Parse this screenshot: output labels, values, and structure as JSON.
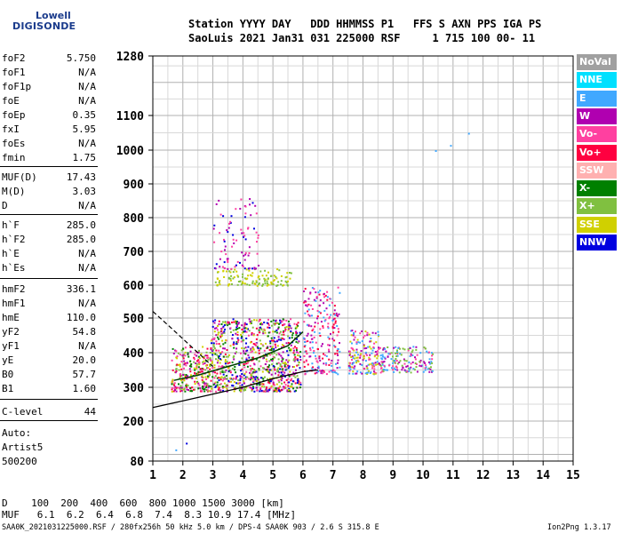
{
  "logo": {
    "line1": "Lowell",
    "line2": "DIGISONDE"
  },
  "header": {
    "line1": "Station YYYY DAY   DDD HHMMSS P1   FFS S AXN PPS IGA PS",
    "line2": "SaoLuis 2021 Jan31 031 225000 RSF     1 715 100 00- 11"
  },
  "params": [
    {
      "name": "foF2",
      "value": "5.750"
    },
    {
      "name": "foF1",
      "value": "N/A"
    },
    {
      "name": "foF1p",
      "value": "N/A"
    },
    {
      "name": "foE",
      "value": "N/A"
    },
    {
      "name": "foEp",
      "value": "0.35"
    },
    {
      "name": "fxI",
      "value": "5.95"
    },
    {
      "name": "foEs",
      "value": "N/A"
    },
    {
      "name": "fmin",
      "value": "1.75"
    },
    {
      "name": "MUF(D)",
      "value": "17.43"
    },
    {
      "name": "M(D)",
      "value": "3.03"
    },
    {
      "name": "D",
      "value": "N/A"
    },
    {
      "name": "h`F",
      "value": "285.0"
    },
    {
      "name": "h`F2",
      "value": "285.0"
    },
    {
      "name": "h`E",
      "value": "N/A"
    },
    {
      "name": "h`Es",
      "value": "N/A"
    },
    {
      "name": "hmF2",
      "value": "336.1"
    },
    {
      "name": "hmF1",
      "value": "N/A"
    },
    {
      "name": "hmE",
      "value": "110.0"
    },
    {
      "name": "yF2",
      "value": "54.8"
    },
    {
      "name": "yF1",
      "value": "N/A"
    },
    {
      "name": "yE",
      "value": "20.0"
    },
    {
      "name": "B0",
      "value": "57.7"
    },
    {
      "name": "B1",
      "value": "1.60"
    },
    {
      "name": "C-level",
      "value": "44"
    }
  ],
  "autoscaling": {
    "line1": "Auto:",
    "line2": "Artist5",
    "line3": "500200"
  },
  "legend": [
    {
      "label": "NoVal",
      "color": "#a0a0a0"
    },
    {
      "label": "NNE",
      "color": "#00e0ff"
    },
    {
      "label": "E",
      "color": "#40a8ff"
    },
    {
      "label": "W",
      "color": "#b000b0"
    },
    {
      "label": "Vo-",
      "color": "#ff40a0"
    },
    {
      "label": "Vo+",
      "color": "#ff0040"
    },
    {
      "label": "SSW",
      "color": "#ffb0b0"
    },
    {
      "label": "X-",
      "color": "#008000"
    },
    {
      "label": "X+",
      "color": "#80c040"
    },
    {
      "label": "SSE",
      "color": "#d0d000"
    },
    {
      "label": "NNW",
      "color": "#0000e0"
    }
  ],
  "footer": {
    "d_line": "D    100  200  400  600  800 1000 1500 3000 [km]",
    "muf_line": "MUF   6.1  6.2  6.4  6.8  7.4  8.3 10.9 17.4 [MHz]",
    "file_line": "SAA0K_2021031225000.RSF / 280fx256h 50 kHz 5.0 km / DPS-4 SAA0K 903 / 2.6 S 315.8 E",
    "version": "Ion2Png 1.3.17"
  },
  "chart_data": {
    "type": "scatter",
    "title": "",
    "xlabel": "",
    "ylabel": "",
    "xlim": [
      1,
      15
    ],
    "ylim": [
      80,
      1280
    ],
    "x_ticks": [
      1,
      2,
      3,
      4,
      5,
      6,
      7,
      8,
      9,
      10,
      11,
      12,
      13,
      14,
      15
    ],
    "y_ticks": [
      80,
      200,
      300,
      400,
      500,
      600,
      700,
      800,
      900,
      1000,
      1100,
      1280
    ],
    "grid": true,
    "point_clusters": [
      {
        "x_range": [
          1.6,
          2.9
        ],
        "y_range": [
          290,
          420
        ],
        "colors": [
          "#b000b0",
          "#ff40a0",
          "#d0d000",
          "#008000",
          "#80c040",
          "#ff0040"
        ],
        "count": 260
      },
      {
        "x_range": [
          2.9,
          5.9
        ],
        "y_range": [
          290,
          500
        ],
        "colors": [
          "#b000b0",
          "#ff40a0",
          "#d0d000",
          "#008000",
          "#ff0040",
          "#0000e0",
          "#80c040"
        ],
        "count": 900
      },
      {
        "x_range": [
          3.0,
          5.6
        ],
        "y_range": [
          600,
          650
        ],
        "colors": [
          "#d0d000",
          "#80c040"
        ],
        "count": 120
      },
      {
        "x_range": [
          3.0,
          4.5
        ],
        "y_range": [
          650,
          860
        ],
        "colors": [
          "#b000b0",
          "#0000e0",
          "#ff40a0"
        ],
        "count": 90
      },
      {
        "x_range": [
          6.0,
          7.2
        ],
        "y_range": [
          340,
          600
        ],
        "colors": [
          "#ff0040",
          "#ff40a0",
          "#b000b0",
          "#40a8ff"
        ],
        "count": 220
      },
      {
        "x_range": [
          7.5,
          8.5
        ],
        "y_range": [
          340,
          470
        ],
        "colors": [
          "#ff40a0",
          "#b000b0",
          "#40a8ff",
          "#d0d000"
        ],
        "count": 160
      },
      {
        "x_range": [
          8.5,
          10.3
        ],
        "y_range": [
          345,
          420
        ],
        "colors": [
          "#40a8ff",
          "#b000b0",
          "#ff40a0",
          "#80c040"
        ],
        "count": 170
      }
    ],
    "isolated_points": [
      {
        "x": 10.4,
        "y": 1000,
        "color": "#40a8ff"
      },
      {
        "x": 10.9,
        "y": 1015,
        "color": "#40a8ff"
      },
      {
        "x": 11.5,
        "y": 1050,
        "color": "#40a8ff"
      },
      {
        "x": 2.1,
        "y": 135,
        "color": "#0000e0"
      },
      {
        "x": 1.75,
        "y": 115,
        "color": "#40a8ff"
      }
    ],
    "profile_curve": [
      [
        1,
        240
      ],
      [
        2,
        260
      ],
      [
        3,
        280
      ],
      [
        4,
        300
      ],
      [
        5,
        325
      ],
      [
        6,
        345
      ],
      [
        6.5,
        350
      ]
    ],
    "dashed_curve": [
      [
        1,
        520
      ],
      [
        1.5,
        480
      ],
      [
        2,
        440
      ],
      [
        2.5,
        400
      ],
      [
        3,
        360
      ]
    ],
    "trace_f2": [
      [
        1.7,
        320
      ],
      [
        2.5,
        335
      ],
      [
        3.5,
        360
      ],
      [
        4.5,
        385
      ],
      [
        5.5,
        420
      ],
      [
        6,
        460
      ]
    ]
  }
}
